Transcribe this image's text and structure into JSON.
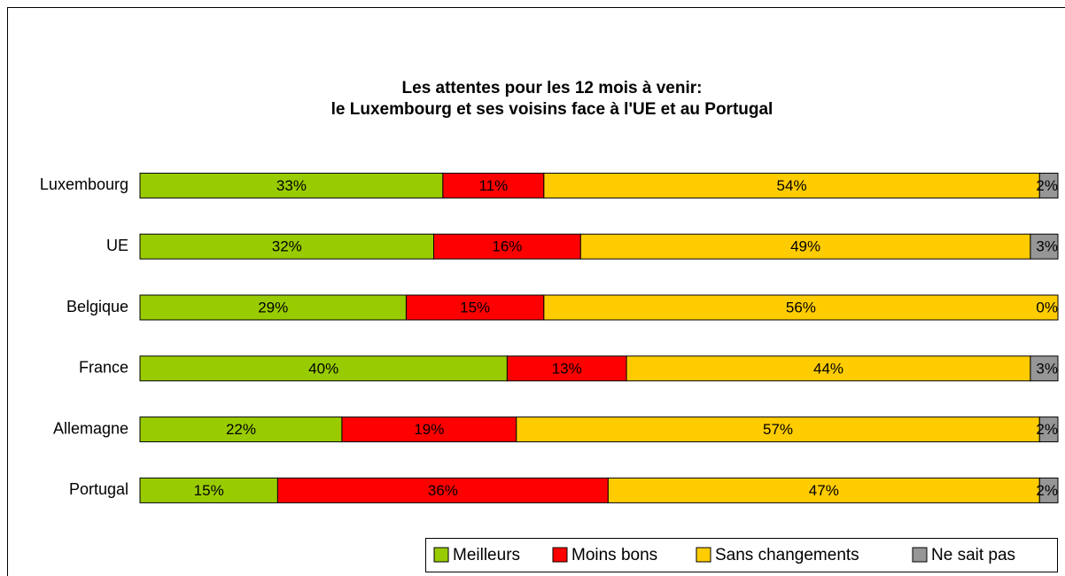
{
  "chart_data": {
    "type": "stacked-bar-horizontal",
    "title": [
      "Les attentes pour les 12 mois à venir:",
      "le Luxembourg et ses voisins face à l'UE et au Portugal"
    ],
    "categories": [
      "Luxembourg",
      "UE",
      "Belgique",
      "France",
      "Allemagne",
      "Portugal"
    ],
    "xlim": [
      0,
      100
    ],
    "legend": "bottom-right",
    "series": [
      {
        "name": "Meilleurs",
        "color": "#99cc00",
        "values": [
          33,
          32,
          29,
          40,
          22,
          15
        ],
        "value_labels": [
          "33%",
          "32%",
          "29%",
          "40%",
          "22%",
          "15%"
        ]
      },
      {
        "name": "Moins bons",
        "color": "#ff0000",
        "values": [
          11,
          16,
          15,
          13,
          19,
          36
        ],
        "value_labels": [
          "11%",
          "16%",
          "15%",
          "13%",
          "19%",
          "36%"
        ]
      },
      {
        "name": "Sans changements",
        "color": "#ffcc00",
        "values": [
          54,
          49,
          56,
          44,
          57,
          47
        ],
        "value_labels": [
          "54%",
          "49%",
          "56%",
          "44%",
          "57%",
          "47%"
        ]
      },
      {
        "name": "Ne sait pas",
        "color": "#969696",
        "values": [
          2,
          3,
          0,
          3,
          2,
          2
        ],
        "value_labels": [
          "2%",
          "3%",
          "0%",
          "3%",
          "2%",
          "2%"
        ]
      }
    ]
  }
}
